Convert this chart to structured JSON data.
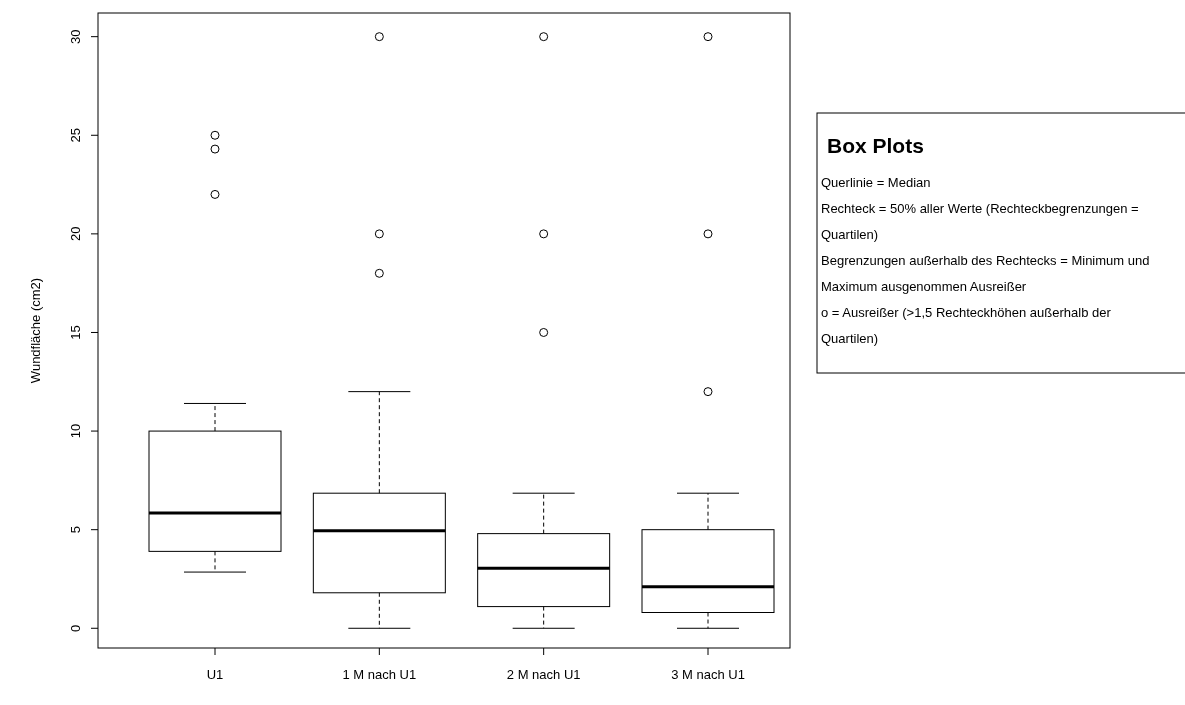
{
  "chart_data": {
    "type": "box",
    "ylabel": "Wundfläche (cm2)",
    "categories": [
      "U1",
      "1 M nach U1",
      "2 M nach U1",
      "3 M nach U1"
    ],
    "boxes": [
      {
        "low": 2.85,
        "q1": 3.9,
        "median": 5.85,
        "q3": 10,
        "high": 11.4,
        "outliers": [
          25,
          24.3,
          22
        ]
      },
      {
        "low": 0,
        "q1": 1.8,
        "median": 4.95,
        "q3": 6.85,
        "high": 12,
        "outliers": [
          30,
          20,
          18
        ]
      },
      {
        "low": 0,
        "q1": 1.1,
        "median": 3.05,
        "q3": 4.8,
        "high": 6.85,
        "outliers": [
          30,
          20,
          15
        ]
      },
      {
        "low": 0,
        "q1": 0.8,
        "median": 2.1,
        "q3": 5,
        "high": 6.85,
        "outliers": [
          30,
          20,
          12
        ]
      }
    ],
    "ylim": [
      -1,
      31.2
    ],
    "yticks": [
      0,
      5,
      10,
      15,
      20,
      25,
      30
    ],
    "grid": false,
    "annotations": [
      "Box Plots",
      "Querlinie = Median",
      "Rechteck = 50% aller Werte (Rechteckbegrenzungen = Quartilen)",
      "Begrenzungen außerhalb des Rechtecks = Minimum und Maximum ausgenommen Ausreißer",
      "o = Ausreißer (>1,5 Rechteckhöhen außerhalb der Quartilen)"
    ]
  }
}
